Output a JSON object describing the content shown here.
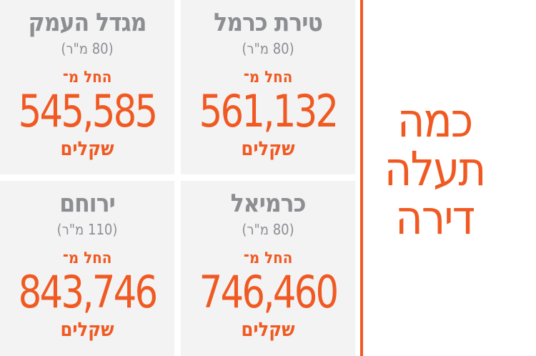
{
  "headline": {
    "line1": "כמה",
    "line2": "תעלה",
    "line3": "דירה"
  },
  "cards": {
    "tl": {
      "city": "מגדל העמק",
      "size": "(80 מ\"ר)",
      "from": "החל מ־",
      "price": "545,585",
      "unit": "שקלים"
    },
    "tr": {
      "city": "טירת כרמל",
      "size": "(80 מ\"ר)",
      "from": "החל מ־",
      "price": "561,132",
      "unit": "שקלים"
    },
    "bl": {
      "city": "ירוחם",
      "size": "(110 מ\"ר)",
      "from": "החל מ־",
      "price": "843,746",
      "unit": "שקלים"
    },
    "br": {
      "city": "כרמיאל",
      "size": "(80 מ\"ר)",
      "from": "החל מ־",
      "price": "746,460",
      "unit": "שקלים"
    }
  },
  "colors": {
    "accent": "#f05a22",
    "muted": "#8d8e92",
    "card_bg": "#f3f3f4"
  }
}
